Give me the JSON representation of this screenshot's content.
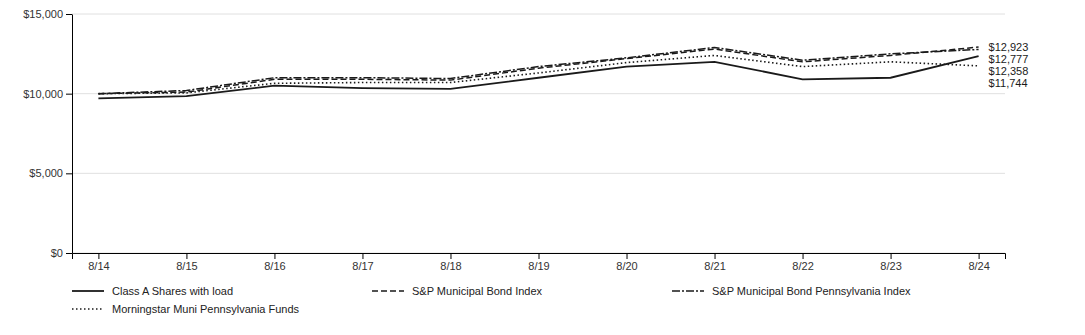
{
  "chart_data": {
    "type": "line",
    "categories": [
      "8/14",
      "8/15",
      "8/16",
      "8/17",
      "8/18",
      "8/19",
      "8/20",
      "8/21",
      "8/22",
      "8/23",
      "8/24"
    ],
    "series": [
      {
        "name": "Class A Shares with load",
        "color": "#1a1a1a",
        "line_style": "solid",
        "values": [
          9700,
          9850,
          10500,
          10350,
          10300,
          11000,
          11700,
          12000,
          10900,
          11000,
          12358
        ]
      },
      {
        "name": "S&P Municipal Bond Index",
        "color": "#1a1a1a",
        "line_style": "dashed",
        "values": [
          10000,
          10100,
          10900,
          10900,
          10850,
          11600,
          12200,
          12800,
          12000,
          12400,
          12923
        ]
      },
      {
        "name": "S&P Municipal Bond Pennsylvania Index",
        "color": "#1a1a1a",
        "line_style": "dashdot",
        "values": [
          10000,
          10200,
          11000,
          11000,
          10950,
          11700,
          12250,
          12900,
          12100,
          12500,
          12777
        ]
      },
      {
        "name": "Morningstar Muni Pennsylvania Funds",
        "color": "#1a1a1a",
        "line_style": "dotted",
        "values": [
          10000,
          10050,
          10650,
          10700,
          10700,
          11300,
          11950,
          12400,
          11700,
          12000,
          11744
        ]
      }
    ],
    "ylim": [
      0,
      15000
    ],
    "yticks": [
      {
        "value": 0,
        "label": "$0"
      },
      {
        "value": 5000,
        "label": "$5,000"
      },
      {
        "value": 10000,
        "label": "$10,000"
      },
      {
        "value": 15000,
        "label": "$15,000"
      }
    ],
    "annotations": [
      {
        "text": "$12,923",
        "x": "8/24",
        "y": 12923
      },
      {
        "text": "$12,777",
        "x": "8/24",
        "y": 12777
      },
      {
        "text": "$12,358",
        "x": "8/24",
        "y": 12358
      },
      {
        "text": "$11,744",
        "x": "8/24",
        "y": 11744
      }
    ],
    "grid": true,
    "legend": "bottom"
  }
}
